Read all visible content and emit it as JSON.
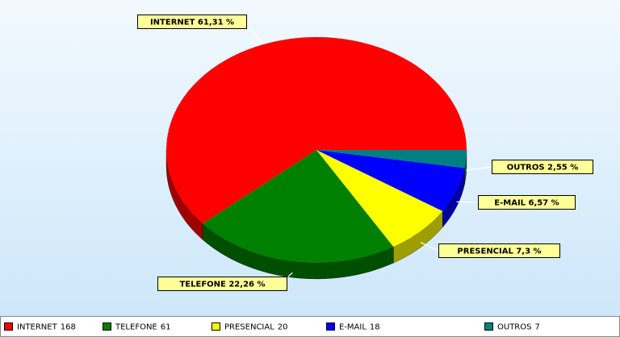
{
  "chart_data": {
    "type": "pie3d",
    "categories": [
      "INTERNET",
      "TELEFONE",
      "PRESENCIAL",
      "E-MAIL",
      "OUTROS"
    ],
    "values": [
      168,
      61,
      20,
      18,
      7
    ],
    "value_labels": [
      "INTERNET 61,31 %",
      "TELEFONE 22,26 %",
      "PRESENCIAL 7,3 %",
      "E-MAIL 6,57 %",
      "OUTROS 2,55 %"
    ],
    "colors": [
      "#ff0000",
      "#008000",
      "#ffff00",
      "#0000ff",
      "#008080"
    ],
    "legend": "bottom"
  }
}
